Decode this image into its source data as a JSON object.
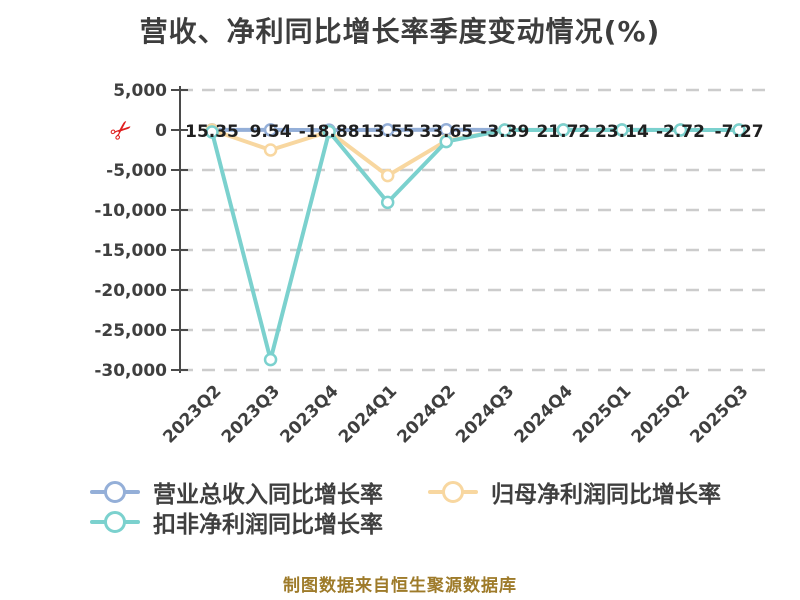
{
  "title": "营收、净利同比增长率季度变动情况(%)",
  "caption": "制图数据来自恒生聚源数据库",
  "colors": {
    "revenue": "#94afd8",
    "net_profit": "#f8d7a0",
    "deducted_net_profit": "#7bd1ce",
    "title_text": "#3d3d3d",
    "axis_text": "#3f3f3f",
    "point_label_text": "#1f1f1f",
    "grid_line": "#cccccc",
    "axis_line": "#4a4a4a",
    "caption_text": "#9e7b2a",
    "scissors": "#e01e1e",
    "background": "#ffffff"
  },
  "axis_break_icon": "scissors-icon",
  "y_axis": {
    "ticks": [
      {
        "label": "5,000",
        "value": 5000
      },
      {
        "label": "0",
        "value": 0
      },
      {
        "label": "-5,000",
        "value": -5000
      },
      {
        "label": "-10,000",
        "value": -10000
      },
      {
        "label": "-15,000",
        "value": -15000
      },
      {
        "label": "-20,000",
        "value": -20000
      },
      {
        "label": "-25,000",
        "value": -25000
      },
      {
        "label": "-30,000",
        "value": -30000
      }
    ]
  },
  "chart_data": {
    "type": "line",
    "title": "营收、净利同比增长率季度变动情况(%)",
    "categories": [
      "2023Q2",
      "2023Q3",
      "2023Q4",
      "2024Q1",
      "2024Q2",
      "2024Q3",
      "2024Q4",
      "2025Q1",
      "2025Q2",
      "2025Q3"
    ],
    "series": [
      {
        "key": "revenue-yoy",
        "name": "营业总收入同比增长率",
        "color": "#94afd8",
        "values": [
          15.35,
          9.54,
          -18.88,
          13.55,
          33.65,
          -3.39,
          21.72,
          23.14,
          -2.72,
          -7.27
        ]
      },
      {
        "key": "net-profit-yoy",
        "name": "归母净利润同比增长率",
        "color": "#f8d7a0",
        "values": [
          0,
          -2500,
          -200,
          -5700,
          -1350,
          0,
          0,
          0,
          0,
          0
        ],
        "estimated": true
      },
      {
        "key": "deducted-net-profit-yoy",
        "name": "扣非净利润同比增长率",
        "color": "#7bd1ce",
        "values": [
          -250,
          -28700,
          -200,
          -9050,
          -1450,
          0,
          0,
          0,
          0,
          0
        ],
        "estimated": true
      }
    ],
    "point_labels": [
      "15.35",
      "9.54",
      "-18.88",
      "13.55",
      "33.65",
      "-3.39",
      "21.72",
      "23.14",
      "-2.72",
      "-7.27"
    ],
    "ylim": [
      -30500,
      5500
    ],
    "grid": "horizontal-dashed",
    "legend_position": "bottom"
  },
  "legend": {
    "items": [
      {
        "label": "营业总收入同比增长率",
        "color": "#94afd8"
      },
      {
        "label": "归母净利润同比增长率",
        "color": "#f8d7a0"
      },
      {
        "label": "扣非净利润同比增长率",
        "color": "#7bd1ce"
      }
    ]
  }
}
